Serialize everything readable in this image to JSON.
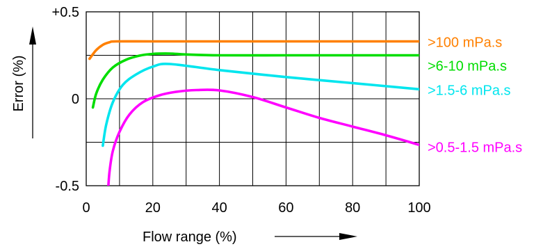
{
  "chart_data": {
    "type": "line",
    "xlabel": "Flow range (%)",
    "ylabel": "Error (%)",
    "xlim": [
      0,
      100
    ],
    "ylim": [
      -0.5,
      0.5
    ],
    "x_ticks": [
      {
        "value": 0,
        "label": "0"
      },
      {
        "value": 20,
        "label": "20"
      },
      {
        "value": 40,
        "label": "40"
      },
      {
        "value": 60,
        "label": "60"
      },
      {
        "value": 80,
        "label": "80"
      },
      {
        "value": 100,
        "label": "100"
      }
    ],
    "y_ticks": [
      {
        "value": 0.5,
        "label": "+0.5"
      },
      {
        "value": 0,
        "label": "0"
      },
      {
        "value": -0.5,
        "label": "-0.5"
      }
    ],
    "grid": true,
    "series": [
      {
        "name": ">100 mPa.s",
        "color": "#ff8000",
        "points": [
          [
            1,
            0.23
          ],
          [
            3,
            0.28
          ],
          [
            5,
            0.31
          ],
          [
            7,
            0.325
          ],
          [
            9,
            0.33
          ],
          [
            20,
            0.33
          ],
          [
            40,
            0.33
          ],
          [
            60,
            0.33
          ],
          [
            80,
            0.33
          ],
          [
            100,
            0.33
          ]
        ]
      },
      {
        "name": ">6-10 mPa.s",
        "color": "#00dd00",
        "points": [
          [
            2,
            -0.05
          ],
          [
            3,
            0.03
          ],
          [
            5,
            0.11
          ],
          [
            8,
            0.18
          ],
          [
            12,
            0.225
          ],
          [
            16,
            0.248
          ],
          [
            20,
            0.258
          ],
          [
            25,
            0.26
          ],
          [
            30,
            0.255
          ],
          [
            40,
            0.25
          ],
          [
            60,
            0.25
          ],
          [
            80,
            0.25
          ],
          [
            100,
            0.25
          ]
        ]
      },
      {
        "name": ">1.5-6 mPa.s",
        "color": "#00e5ee",
        "points": [
          [
            5,
            -0.27
          ],
          [
            6,
            -0.15
          ],
          [
            8,
            -0.02
          ],
          [
            11,
            0.08
          ],
          [
            15,
            0.14
          ],
          [
            20,
            0.185
          ],
          [
            25,
            0.2
          ],
          [
            40,
            0.165
          ],
          [
            60,
            0.125
          ],
          [
            80,
            0.09
          ],
          [
            100,
            0.055
          ]
        ]
      },
      {
        "name": ">0.5-1.5 mPa.s",
        "color": "#ff00ff",
        "points": [
          [
            6.5,
            -0.55
          ],
          [
            7,
            -0.42
          ],
          [
            8,
            -0.3
          ],
          [
            10,
            -0.19
          ],
          [
            13,
            -0.09
          ],
          [
            17,
            -0.02
          ],
          [
            22,
            0.02
          ],
          [
            27,
            0.04
          ],
          [
            33,
            0.05
          ],
          [
            40,
            0.048
          ],
          [
            50,
            0.01
          ],
          [
            60,
            -0.05
          ],
          [
            70,
            -0.11
          ],
          [
            80,
            -0.16
          ],
          [
            90,
            -0.21
          ],
          [
            100,
            -0.265
          ]
        ]
      }
    ]
  }
}
